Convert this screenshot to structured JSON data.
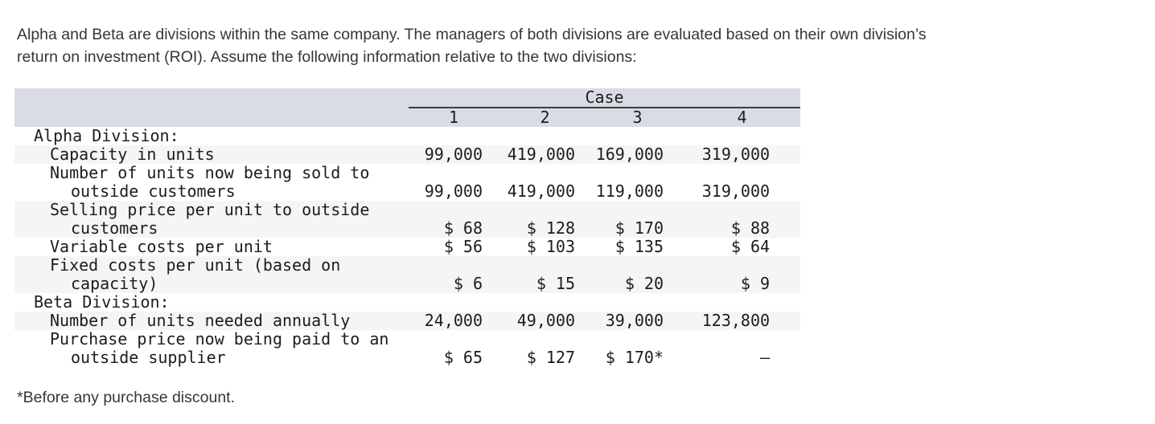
{
  "intro": "Alpha and Beta are divisions within the same company. The managers of both divisions are evaluated based on their own division’s\nreturn on investment (ROI). Assume the following information relative to the two divisions:",
  "table": {
    "group_header": "Case",
    "columns": [
      "1",
      "2",
      "3",
      "4"
    ],
    "rows": [
      {
        "label": "Alpha Division:",
        "type": "section",
        "shaded": false,
        "values": [
          "",
          "",
          "",
          ""
        ]
      },
      {
        "label": "Capacity in units",
        "type": "item",
        "shaded": true,
        "values": [
          "99,000",
          "419,000",
          "169,000",
          "319,000"
        ]
      },
      {
        "label": "Number of units now being sold to\noutside customers",
        "type": "item",
        "shaded": false,
        "values": [
          "99,000",
          "419,000",
          "119,000",
          "319,000"
        ]
      },
      {
        "label": "Selling price per unit to outside\ncustomers",
        "type": "item",
        "shaded": true,
        "values": [
          "$ 68",
          "$ 128",
          "$ 170",
          "$ 88"
        ]
      },
      {
        "label": "Variable costs per unit",
        "type": "item",
        "shaded": false,
        "values": [
          "$ 56",
          "$ 103",
          "$ 135",
          "$ 64"
        ]
      },
      {
        "label": "Fixed costs per unit (based on\ncapacity)",
        "type": "item",
        "shaded": true,
        "values": [
          "$ 6",
          "$ 15",
          "$ 20",
          "$ 9"
        ]
      },
      {
        "label": "Beta Division:",
        "type": "section",
        "shaded": false,
        "values": [
          "",
          "",
          "",
          ""
        ]
      },
      {
        "label": "Number of units needed annually",
        "type": "item",
        "shaded": true,
        "values": [
          "24,000",
          "49,000",
          "39,000",
          "123,800"
        ]
      },
      {
        "label": "Purchase price now being paid to an\noutside supplier",
        "type": "item",
        "shaded": false,
        "values": [
          "$ 65",
          "$ 127",
          "$ 170*",
          "—"
        ]
      }
    ]
  },
  "footnote": "*Before any purchase discount."
}
